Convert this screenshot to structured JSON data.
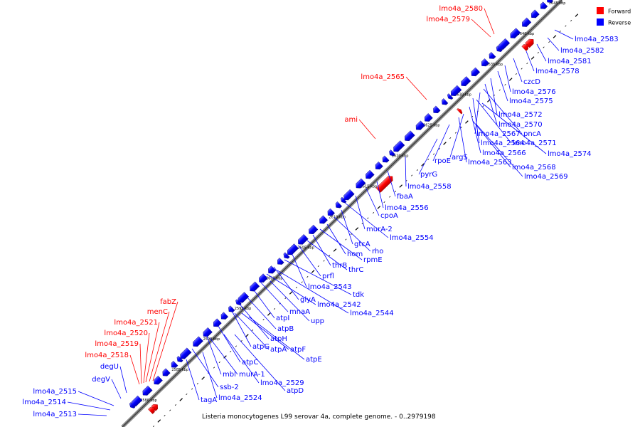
{
  "legend": {
    "forward": {
      "label": "Forward",
      "color": "#ff0000"
    },
    "reverse": {
      "label": "Reverse",
      "color": "#0000ff"
    }
  },
  "caption": "Listeria monocytogenes L99 serovar 4a, complete genome. - 0..2979198",
  "tick_labels": [
    "2580 kbp",
    "2585 kbp",
    "2590 kbp",
    "2595 kbp",
    "2600 kbp",
    "2605 kbp",
    "2610 kbp",
    "2615 kbp",
    "2620 kbp",
    "2625 kbp",
    "2630 kbp",
    "2635 kbp",
    "2640 kbp",
    "2645 kbp"
  ],
  "forward_genes": [
    "lmo4a_2580",
    "lmo4a_2579",
    "lmo4a_2565",
    "ami",
    "fabZ",
    "menC",
    "lmo4a_2521",
    "lmo4a_2520",
    "lmo4a_2519",
    "lmo4a_2518"
  ],
  "reverse_genes": [
    "lmo4a_2583",
    "lmo4a_2582",
    "lmo4a_2581",
    "lmo4a_2578",
    "czcD",
    "lmo4a_2576",
    "lmo4a_2575",
    "lmo4a_2572",
    "lmo4a_2570",
    "pncA",
    "lmo4a_2567",
    "lmo4a_2564",
    "lmo4a_2571",
    "lmo4a_2574",
    "lmo4a_2566",
    "argS",
    "lmo4a_2563",
    "rpoE",
    "lmo4a_2568",
    "lmo4a_2569",
    "pyrG",
    "lmo4a_2558",
    "fbaA",
    "lmo4a_2556",
    "cpoA",
    "murA-2",
    "lmo4a_2554",
    "gtcA",
    "rho",
    "hom",
    "rpmE",
    "thrB",
    "thrC",
    "prfl",
    "lmo4a_2543",
    "tdk",
    "glyA",
    "lmo4a_2542",
    "lmo4a_2544",
    "mnaA",
    "atpI",
    "upp",
    "atpB",
    "atpH",
    "atpG",
    "atpA",
    "atpF",
    "atpE",
    "atpC",
    "mbl",
    "murA-1",
    "lmo4a_2529",
    "ssb-2",
    "atpD",
    "tagA",
    "lmo4a_2524",
    "degU",
    "degV",
    "lmo4a_2515",
    "lmo4a_2514",
    "lmo4a_2513"
  ]
}
